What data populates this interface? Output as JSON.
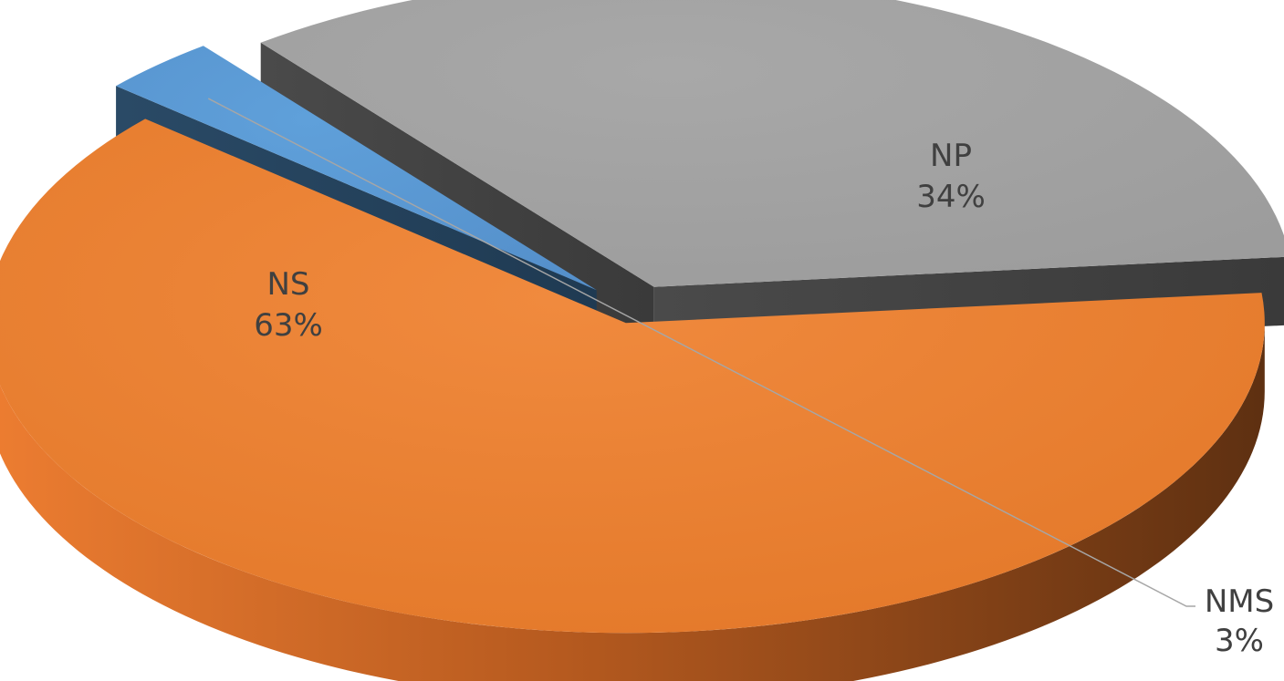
{
  "chart_data": {
    "type": "pie",
    "style": "3d-exploded",
    "categories": [
      "NS",
      "NMS",
      "NP"
    ],
    "values": [
      63,
      3,
      34
    ],
    "value_labels": [
      "63%",
      "3%",
      "34%"
    ],
    "colors": [
      "#ED7D31",
      "#5B9BD5",
      "#A5A5A5"
    ],
    "title": "",
    "legend": "none"
  }
}
